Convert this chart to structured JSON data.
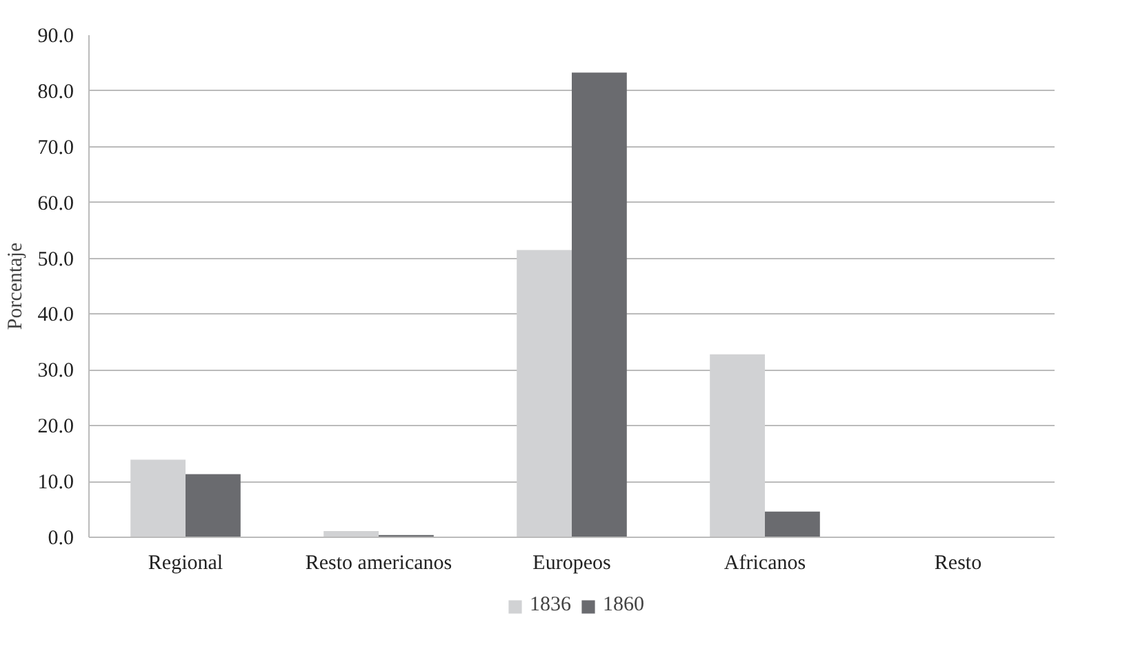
{
  "chart_data": {
    "type": "bar",
    "ylabel": "Porcentaje",
    "categories": [
      "Regional",
      "Resto americanos",
      "Europeos",
      "Africanos",
      "Resto"
    ],
    "series": [
      {
        "name": "1836",
        "color": "#d1d2d4",
        "values": [
          13.9,
          1.1,
          51.5,
          32.8,
          0.0
        ]
      },
      {
        "name": "1860",
        "color": "#6a6b6f",
        "values": [
          11.3,
          0.4,
          83.3,
          4.6,
          0.0
        ]
      }
    ],
    "ylim": [
      0,
      90
    ],
    "yticks": [
      {
        "value": 0,
        "label": "0.0"
      },
      {
        "value": 10,
        "label": "10.0"
      },
      {
        "value": 20,
        "label": "20.0"
      },
      {
        "value": 30,
        "label": "30.0"
      },
      {
        "value": 40,
        "label": "40.0"
      },
      {
        "value": 50,
        "label": "50.0"
      },
      {
        "value": 60,
        "label": "60.0"
      },
      {
        "value": 70,
        "label": "70.0"
      },
      {
        "value": 80,
        "label": "80.0"
      },
      {
        "value": 90,
        "label": "90.0"
      }
    ],
    "grid": "y",
    "legend": "bottom"
  }
}
